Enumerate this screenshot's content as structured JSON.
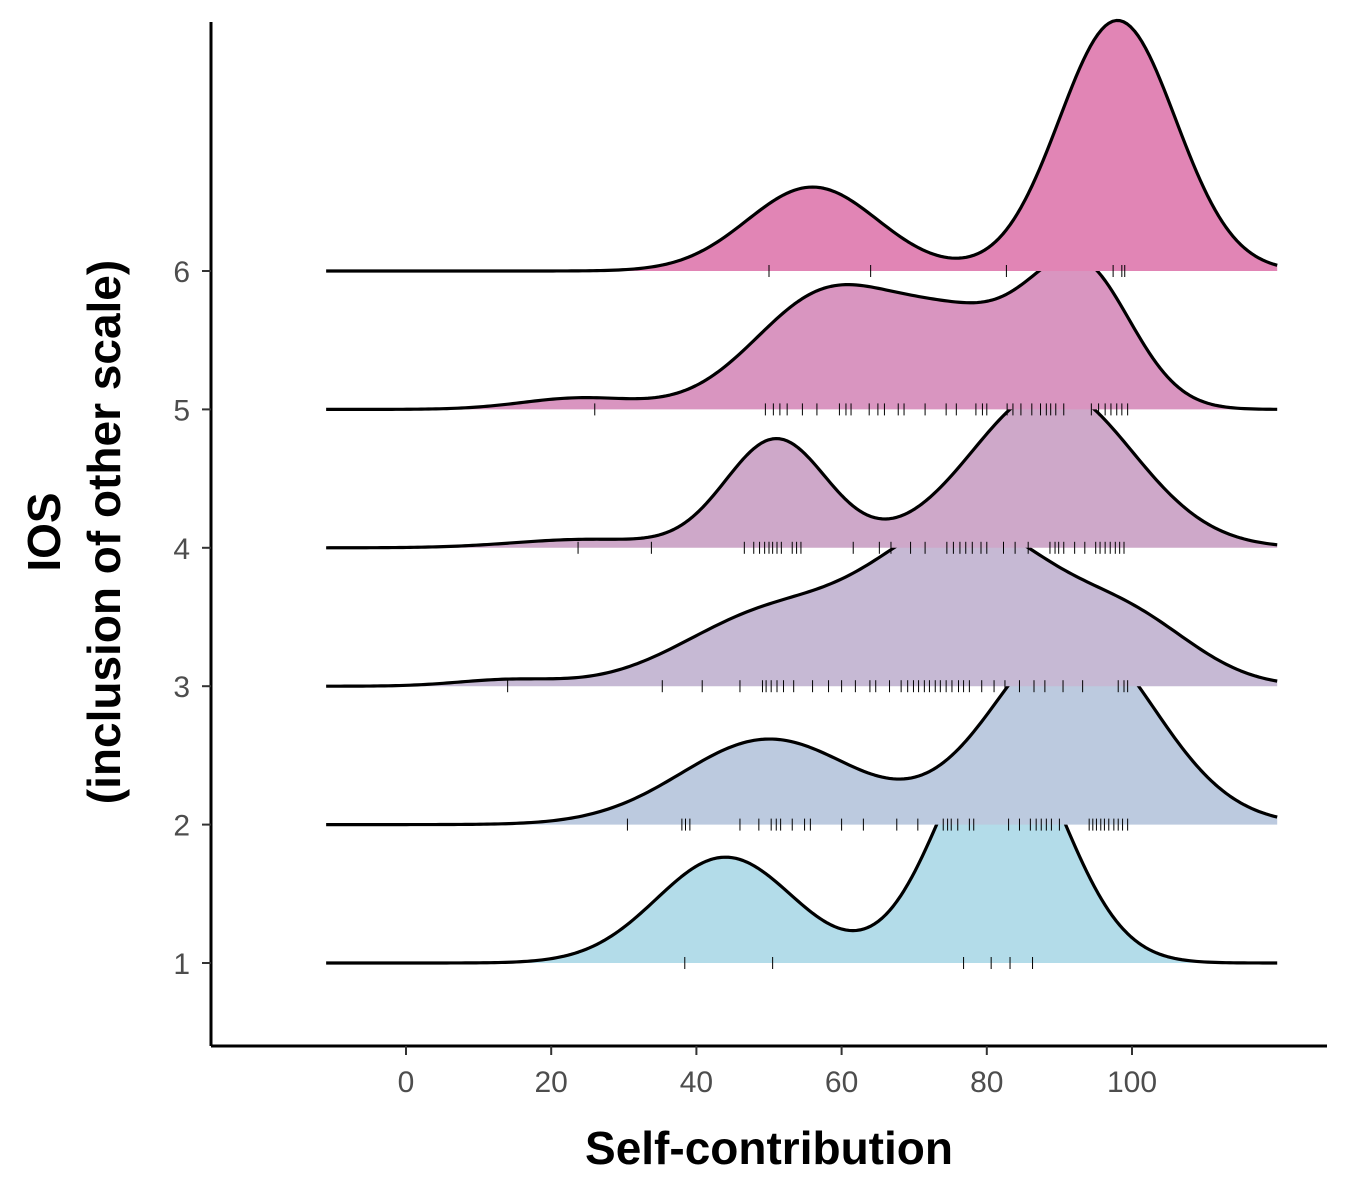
{
  "chart_data": {
    "type": "ridgeline",
    "xlabel": "Self-contribution",
    "ylabel_line1": "IOS",
    "ylabel_line2": "(inclusion of other scale)",
    "x_ticks": [
      0,
      20,
      40,
      60,
      80,
      100
    ],
    "x_range": [
      -16,
      126
    ],
    "density_x_range": [
      -11,
      120
    ],
    "categories": [
      "1",
      "2",
      "3",
      "4",
      "5",
      "6"
    ],
    "grid": false,
    "legend": "none",
    "series": [
      {
        "category": "1",
        "fill": "#b3dce9",
        "peak_height": 1.72,
        "components": [
          {
            "mean": 44,
            "sd": 9.5,
            "weight": 0.88
          },
          {
            "mean": 82,
            "sd": 8.5,
            "weight": 1.98
          }
        ],
        "rug": [
          38.4,
          50.5,
          76.8,
          80.6,
          83.2,
          86.3
        ]
      },
      {
        "category": "2",
        "fill": "#bccadf",
        "peak_height": 1.39,
        "components": [
          {
            "mean": 50,
            "sd": 12,
            "weight": 1.0
          },
          {
            "mean": 92,
            "sd": 11,
            "weight": 2.25
          }
        ],
        "rug": [
          30.5,
          38.0,
          38.5,
          39.1,
          46.0,
          48.6,
          50.3,
          51.0,
          51.6,
          53.2,
          54.9,
          55.7,
          60.0,
          63.0,
          67.6,
          70.5,
          74.0,
          74.6,
          75.1,
          76.0,
          77.6,
          78.2,
          83.0,
          84.5,
          86.0,
          86.8,
          87.5,
          88.2,
          88.9,
          90.0,
          94.1,
          94.6,
          95.1,
          95.7,
          96.2,
          96.8,
          97.5,
          98.1,
          98.7,
          99.4
        ]
      },
      {
        "category": "3",
        "fill": "#c6b9d4",
        "peak_height": 1.2,
        "components": [
          {
            "mean": 14,
            "sd": 7,
            "weight": 0.05
          },
          {
            "mean": 50,
            "sd": 12,
            "weight": 0.55
          },
          {
            "mean": 77,
            "sd": 12,
            "weight": 1.25
          },
          {
            "mean": 100,
            "sd": 9,
            "weight": 0.45
          }
        ],
        "rug": [
          14.0,
          35.3,
          40.8,
          46.0,
          49.1,
          49.6,
          50.3,
          51.1,
          52.0,
          53.4,
          56.0,
          58.2,
          60.0,
          61.9,
          63.9,
          64.7,
          66.6,
          68.2,
          69.1,
          69.9,
          70.6,
          71.4,
          72.1,
          72.9,
          73.6,
          74.4,
          75.2,
          76.1,
          76.8,
          77.6,
          79.3,
          81.0,
          82.5,
          84.5,
          86.5,
          88.0,
          90.5,
          93.2,
          98.1,
          98.9,
          99.4
        ]
      },
      {
        "category": "4",
        "fill": "#cea8c9",
        "peak_height": 1.15,
        "components": [
          {
            "mean": 51,
            "sd": 7,
            "weight": 0.9
          },
          {
            "mean": 89,
            "sd": 11,
            "weight": 1.32
          },
          {
            "mean": 25,
            "sd": 10,
            "weight": 0.07
          }
        ],
        "rug": [
          23.7,
          33.8,
          46.6,
          47.9,
          48.7,
          49.4,
          50.0,
          50.5,
          51.1,
          51.7,
          53.2,
          53.8,
          54.4,
          61.6,
          65.2,
          66.8,
          69.5,
          71.5,
          74.5,
          75.4,
          76.3,
          77.1,
          78.0,
          79.2,
          80.0,
          82.3,
          83.9,
          85.7,
          88.7,
          89.4,
          89.9,
          90.6,
          92.1,
          93.5,
          95.0,
          95.6,
          96.3,
          97.0,
          97.7,
          98.3,
          98.9
        ]
      },
      {
        "category": "5",
        "fill": "#d995c0",
        "peak_height": 1.11,
        "components": [
          {
            "mean": 24,
            "sd": 8,
            "weight": 0.08
          },
          {
            "mean": 58,
            "sd": 10,
            "weight": 0.8
          },
          {
            "mean": 77,
            "sd": 9,
            "weight": 0.55
          },
          {
            "mean": 93,
            "sd": 7,
            "weight": 0.95
          }
        ],
        "rug": [
          26.0,
          49.5,
          50.6,
          51.5,
          52.5,
          54.6,
          56.6,
          59.7,
          60.6,
          61.3,
          63.8,
          65.0,
          65.9,
          67.8,
          68.6,
          71.5,
          74.4,
          75.8,
          78.5,
          79.4,
          80.0,
          82.8,
          83.6,
          84.7,
          86.2,
          87.4,
          88.2,
          88.8,
          89.5,
          90.6,
          94.4,
          95.4,
          96.3,
          97.1,
          97.9,
          98.6,
          99.4
        ]
      },
      {
        "category": "6",
        "fill": "#e185b5",
        "peak_height": 1.81,
        "components": [
          {
            "mean": 56,
            "sd": 9,
            "weight": 0.68
          },
          {
            "mean": 98,
            "sd": 8,
            "weight": 2.03
          }
        ],
        "rug": [
          50.0,
          64.0,
          82.7,
          97.4,
          98.6,
          99.0
        ]
      }
    ]
  }
}
